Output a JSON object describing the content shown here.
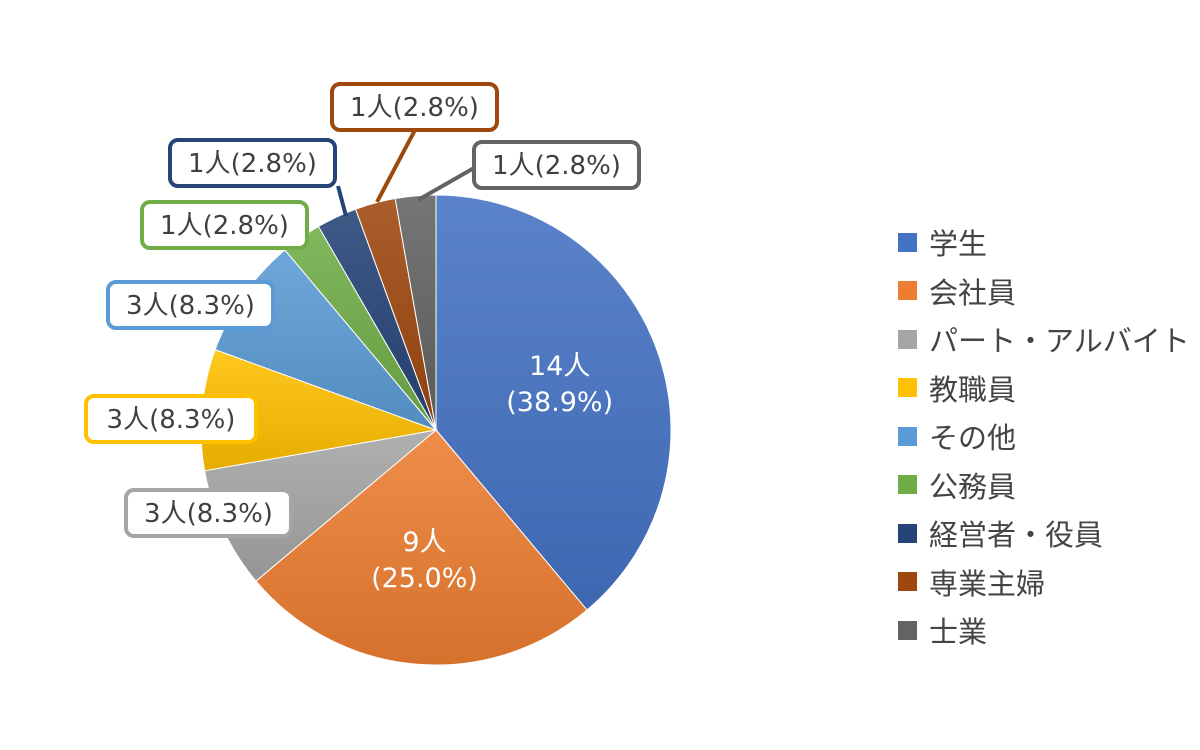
{
  "chart_data": {
    "type": "pie",
    "start_angle_deg": 0,
    "direction": "clockwise",
    "legend_position": "right",
    "slices": [
      {
        "category": "学生",
        "count": 14,
        "percent": 38.9,
        "label_count": "14人",
        "label_percent": "(38.9%)",
        "color": "#4472C4",
        "label_style": "inside"
      },
      {
        "category": "会社員",
        "count": 9,
        "percent": 25.0,
        "label_count": "9人",
        "label_percent": "(25.0%)",
        "color": "#ED7D31",
        "label_style": "inside"
      },
      {
        "category": "パート・アルバイト",
        "count": 3,
        "percent": 8.3,
        "label": "3人(8.3%)",
        "color": "#A5A5A5",
        "label_style": "callout"
      },
      {
        "category": "教職員",
        "count": 3,
        "percent": 8.3,
        "label": "3人(8.3%)",
        "color": "#FFC000",
        "label_style": "callout"
      },
      {
        "category": "その他",
        "count": 3,
        "percent": 8.3,
        "label": "3人(8.3%)",
        "color": "#5B9BD5",
        "label_style": "callout"
      },
      {
        "category": "公務員",
        "count": 1,
        "percent": 2.8,
        "label": "1人(2.8%)",
        "color": "#70AD47",
        "label_style": "callout"
      },
      {
        "category": "経営者・役員",
        "count": 1,
        "percent": 2.8,
        "label": "1人(2.8%)",
        "color": "#264478",
        "label_style": "callout"
      },
      {
        "category": "専業主婦",
        "count": 1,
        "percent": 2.8,
        "label": "1人(2.8%)",
        "color": "#9E480E",
        "label_style": "callout"
      },
      {
        "category": "士業",
        "count": 1,
        "percent": 2.8,
        "label": "1人(2.8%)",
        "color": "#636363",
        "label_style": "callout"
      }
    ]
  }
}
